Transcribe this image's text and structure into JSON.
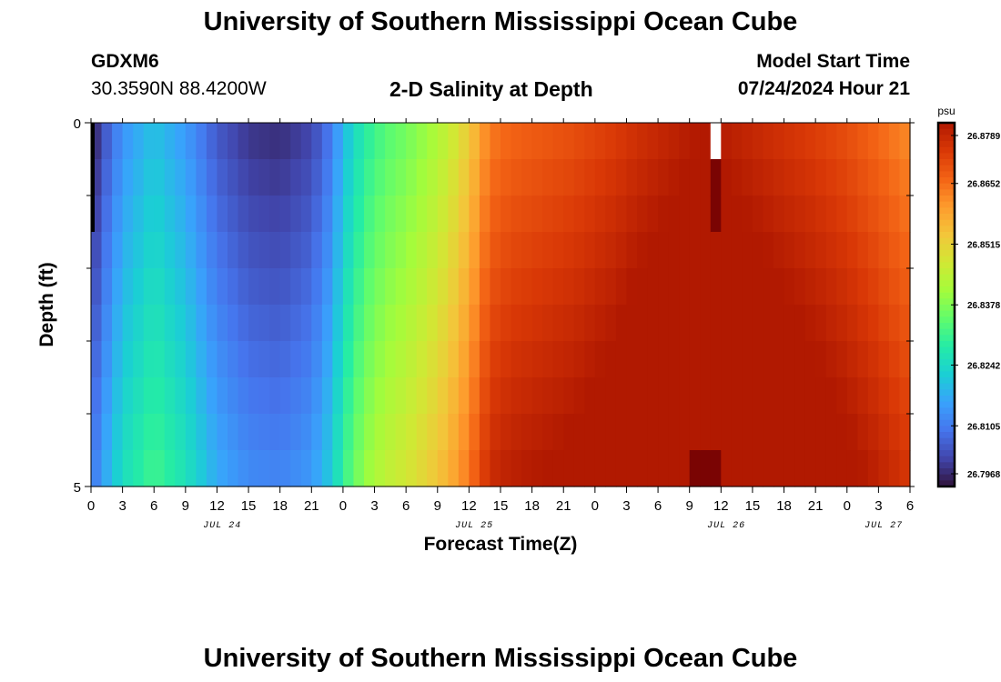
{
  "header": {
    "title": "University of Southern Mississippi Ocean Cube",
    "station_id": "GDXM6",
    "station_coords": "30.3590N  88.4200W",
    "plot_title": "2-D Salinity at Depth",
    "model_start_label": "Model Start Time",
    "model_start_value": "07/24/2024 Hour 21"
  },
  "footer": {
    "title": "University of Southern Mississippi Ocean Cube"
  },
  "colors": {
    "palette": [
      "#30123b",
      "#4145ab",
      "#4675ed",
      "#39a2fc",
      "#1bcfd4",
      "#24eca6",
      "#61fc6c",
      "#a4fc3b",
      "#d1e834",
      "#f3c63a",
      "#fe9b2d",
      "#f36315",
      "#d93806",
      "#b11901",
      "#7a0403"
    ],
    "missing": "#ffffff",
    "frame": "#000000"
  },
  "chart_data": {
    "type": "heatmap",
    "title": "2-D Salinity at Depth",
    "xlabel": "Forecast Time(Z)",
    "ylabel": "Depth (ft)",
    "x_tick_labels": [
      "0",
      "3",
      "6",
      "9",
      "12",
      "15",
      "18",
      "21",
      "0",
      "3",
      "6",
      "9",
      "12",
      "15",
      "18",
      "21",
      "0",
      "3",
      "6",
      "9",
      "12",
      "15",
      "18",
      "21",
      "0",
      "3",
      "6"
    ],
    "x_date_labels": [
      "JUL 24",
      "JUL 25",
      "JUL 26",
      "JUL 27"
    ],
    "xlim_hours": [
      0,
      78
    ],
    "y_tick_labels": [
      "0",
      "5"
    ],
    "ylim": [
      0,
      5
    ],
    "y_minor_ticks": [
      1,
      2,
      3,
      4
    ],
    "depths_ft": [
      0,
      0.5,
      1,
      1.5,
      2,
      2.5,
      3,
      3.5,
      4,
      4.5
    ],
    "colorbar": {
      "unit": "psu",
      "min": 26.7968,
      "max": 26.8789,
      "tick_labels": [
        "26.8789",
        "26.8652",
        "26.8515",
        "26.8378",
        "26.8242",
        "26.8105",
        "26.7968"
      ]
    },
    "surface_salinity_keyframes": {
      "hours": [
        0,
        1,
        3,
        6,
        9,
        12,
        15,
        18,
        21,
        23,
        24,
        26,
        28,
        30,
        32,
        34,
        36,
        38,
        40,
        42,
        44,
        46,
        48,
        50,
        52,
        54,
        56,
        58,
        59,
        60,
        63,
        66,
        69,
        72,
        75,
        78
      ],
      "values": [
        26.798,
        26.804,
        26.814,
        26.8205,
        26.815,
        26.806,
        26.8015,
        26.8005,
        26.8035,
        26.811,
        26.819,
        26.8285,
        26.8335,
        26.8365,
        26.8405,
        26.8455,
        26.853,
        26.864,
        26.8665,
        26.8675,
        26.8685,
        26.8695,
        26.871,
        26.8725,
        26.8745,
        26.876,
        26.8775,
        26.879,
        26.8786,
        26.8782,
        26.876,
        26.874,
        26.872,
        26.8695,
        26.866,
        26.862
      ]
    },
    "depth_offset_psu": 0.0012,
    "missing_cells": [
      {
        "hour": 59,
        "depth_ft": 0
      }
    ],
    "highlight_cells": [
      {
        "hour": 59,
        "depth_ft": 0.5,
        "value": 26.889
      },
      {
        "hour": 59,
        "depth_ft": 1,
        "value": 26.889
      }
    ]
  }
}
